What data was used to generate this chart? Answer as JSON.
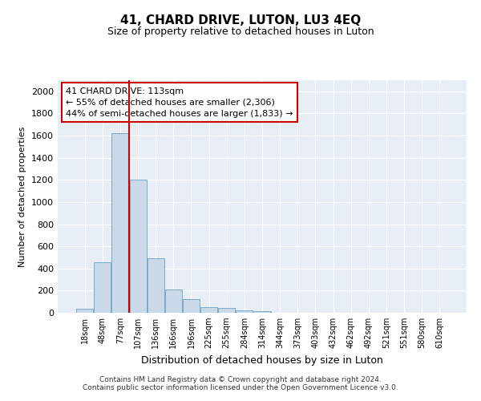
{
  "title": "41, CHARD DRIVE, LUTON, LU3 4EQ",
  "subtitle": "Size of property relative to detached houses in Luton",
  "xlabel": "Distribution of detached houses by size in Luton",
  "ylabel": "Number of detached properties",
  "footnote1": "Contains HM Land Registry data © Crown copyright and database right 2024.",
  "footnote2": "Contains public sector information licensed under the Open Government Licence v3.0.",
  "bar_labels": [
    "18sqm",
    "48sqm",
    "77sqm",
    "107sqm",
    "136sqm",
    "166sqm",
    "196sqm",
    "225sqm",
    "255sqm",
    "284sqm",
    "314sqm",
    "344sqm",
    "373sqm",
    "403sqm",
    "432sqm",
    "462sqm",
    "492sqm",
    "521sqm",
    "551sqm",
    "580sqm",
    "610sqm"
  ],
  "bar_values": [
    35,
    455,
    1620,
    1200,
    490,
    210,
    120,
    50,
    40,
    20,
    15,
    0,
    0,
    0,
    0,
    0,
    0,
    0,
    0,
    0,
    0
  ],
  "bar_color": "#c9d9e8",
  "bar_edge_color": "#7aaac8",
  "vline_color": "#cc0000",
  "annotation_line1": "41 CHARD DRIVE: 113sqm",
  "annotation_line2": "← 55% of detached houses are smaller (2,306)",
  "annotation_line3": "44% of semi-detached houses are larger (1,833) →",
  "ylim": [
    0,
    2100
  ],
  "yticks": [
    0,
    200,
    400,
    600,
    800,
    1000,
    1200,
    1400,
    1600,
    1800,
    2000
  ],
  "plot_bg_color": "#e8eef5",
  "grid_color": "#ffffff",
  "title_fontsize": 11,
  "subtitle_fontsize": 9,
  "xlabel_fontsize": 9,
  "ylabel_fontsize": 8,
  "tick_fontsize": 8
}
